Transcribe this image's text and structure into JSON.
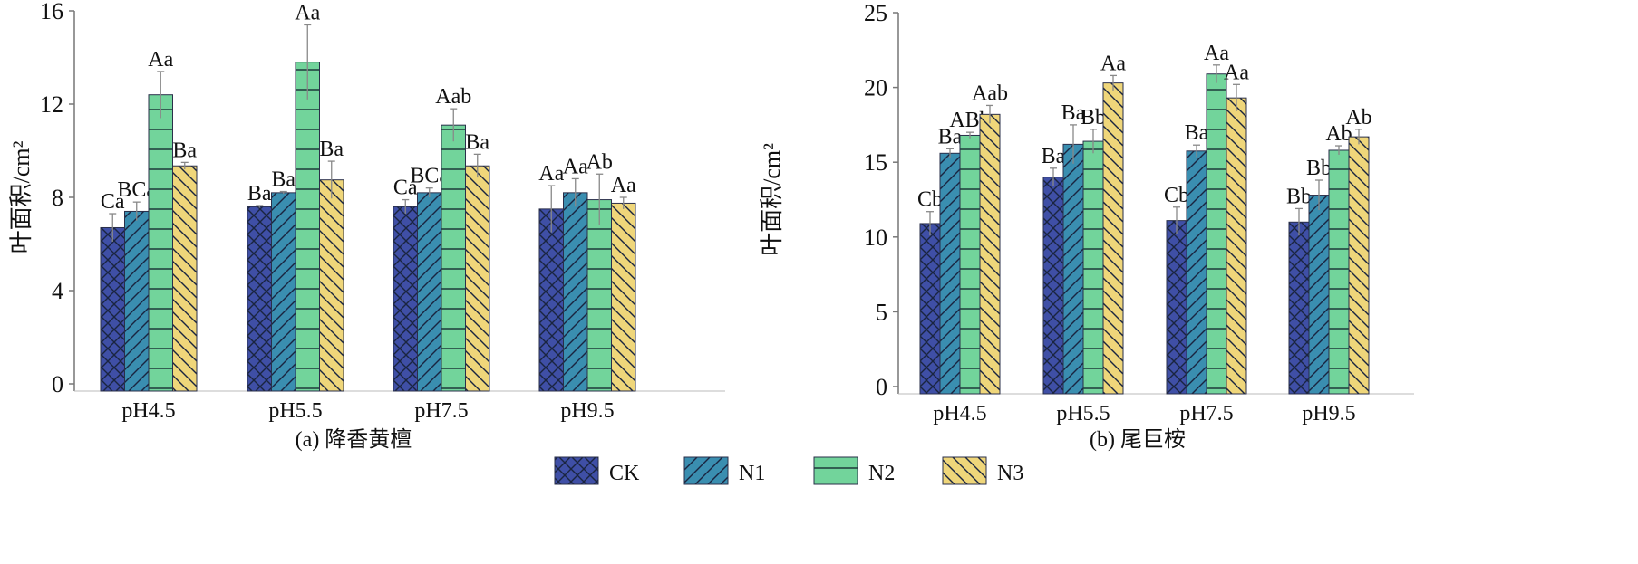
{
  "legend": [
    {
      "name": "CK",
      "color": "#3f4fa6",
      "pattern": "crosshatch"
    },
    {
      "name": "N1",
      "color": "#3a8eb0",
      "pattern": "forward-diagonal"
    },
    {
      "name": "N2",
      "color": "#72d49b",
      "pattern": "horizontal"
    },
    {
      "name": "N3",
      "color": "#efd67a",
      "pattern": "back-diagonal"
    }
  ],
  "chart_data": [
    {
      "type": "bar",
      "title": "(a) 降香黄檀",
      "ylabel": "叶面积/cm²",
      "ylim": [
        0,
        16
      ],
      "yticks": [
        0,
        4,
        8,
        12,
        16
      ],
      "categories": [
        "pH4.5",
        "pH5.5",
        "pH7.5",
        "pH9.5"
      ],
      "series": [
        {
          "name": "CK",
          "values": [
            6.7,
            7.6,
            7.6,
            7.5
          ],
          "errors": [
            0.6,
            0.05,
            0.3,
            1.0
          ],
          "labels": [
            "Ca",
            "Ba",
            "Ca",
            "Aa"
          ]
        },
        {
          "name": "N1",
          "values": [
            7.4,
            8.2,
            8.2,
            8.2
          ],
          "errors": [
            0.4,
            0.05,
            0.2,
            0.6
          ],
          "labels": [
            "BCa",
            "Ba",
            "BCa",
            "Aa"
          ]
        },
        {
          "name": "N2",
          "values": [
            12.4,
            13.8,
            11.1,
            7.9
          ],
          "errors": [
            1.0,
            1.6,
            0.7,
            1.1
          ],
          "labels": [
            "Aa",
            "Aa",
            "Aab",
            "Ab"
          ]
        },
        {
          "name": "N3",
          "values": [
            9.35,
            8.75,
            9.35,
            7.75
          ],
          "errors": [
            0.15,
            0.8,
            0.5,
            0.25
          ],
          "labels": [
            "Ba",
            "Ba",
            "Ba",
            "Aa"
          ]
        }
      ]
    },
    {
      "type": "bar",
      "title": "(b) 尾巨桉",
      "ylabel": "叶面积/cm²",
      "ylim": [
        0,
        25
      ],
      "yticks": [
        0,
        5,
        10,
        15,
        20,
        25
      ],
      "categories": [
        "pH4.5",
        "pH5.5",
        "pH7.5",
        "pH9.5"
      ],
      "series": [
        {
          "name": "CK",
          "values": [
            10.9,
            14.0,
            11.1,
            11.0
          ],
          "errors": [
            0.8,
            0.6,
            0.9,
            0.9
          ],
          "labels": [
            "Cb",
            "Ba",
            "Cb",
            "Bb"
          ]
        },
        {
          "name": "N1",
          "values": [
            15.6,
            16.2,
            15.75,
            12.8
          ],
          "errors": [
            0.3,
            1.3,
            0.4,
            1.0
          ],
          "labels": [
            "Ba",
            "Ba",
            "Ba",
            "Bb"
          ]
        },
        {
          "name": "N2",
          "values": [
            16.8,
            16.4,
            20.9,
            15.8
          ],
          "errors": [
            0.2,
            0.8,
            0.6,
            0.3
          ],
          "labels": [
            "ABb",
            "Bb",
            "Aa",
            "Ab"
          ]
        },
        {
          "name": "N3",
          "values": [
            18.2,
            20.3,
            19.3,
            16.7
          ],
          "errors": [
            0.6,
            0.5,
            0.9,
            0.5
          ],
          "labels": [
            "Aab",
            "Aa",
            "Aa",
            "Ab"
          ]
        }
      ]
    }
  ]
}
